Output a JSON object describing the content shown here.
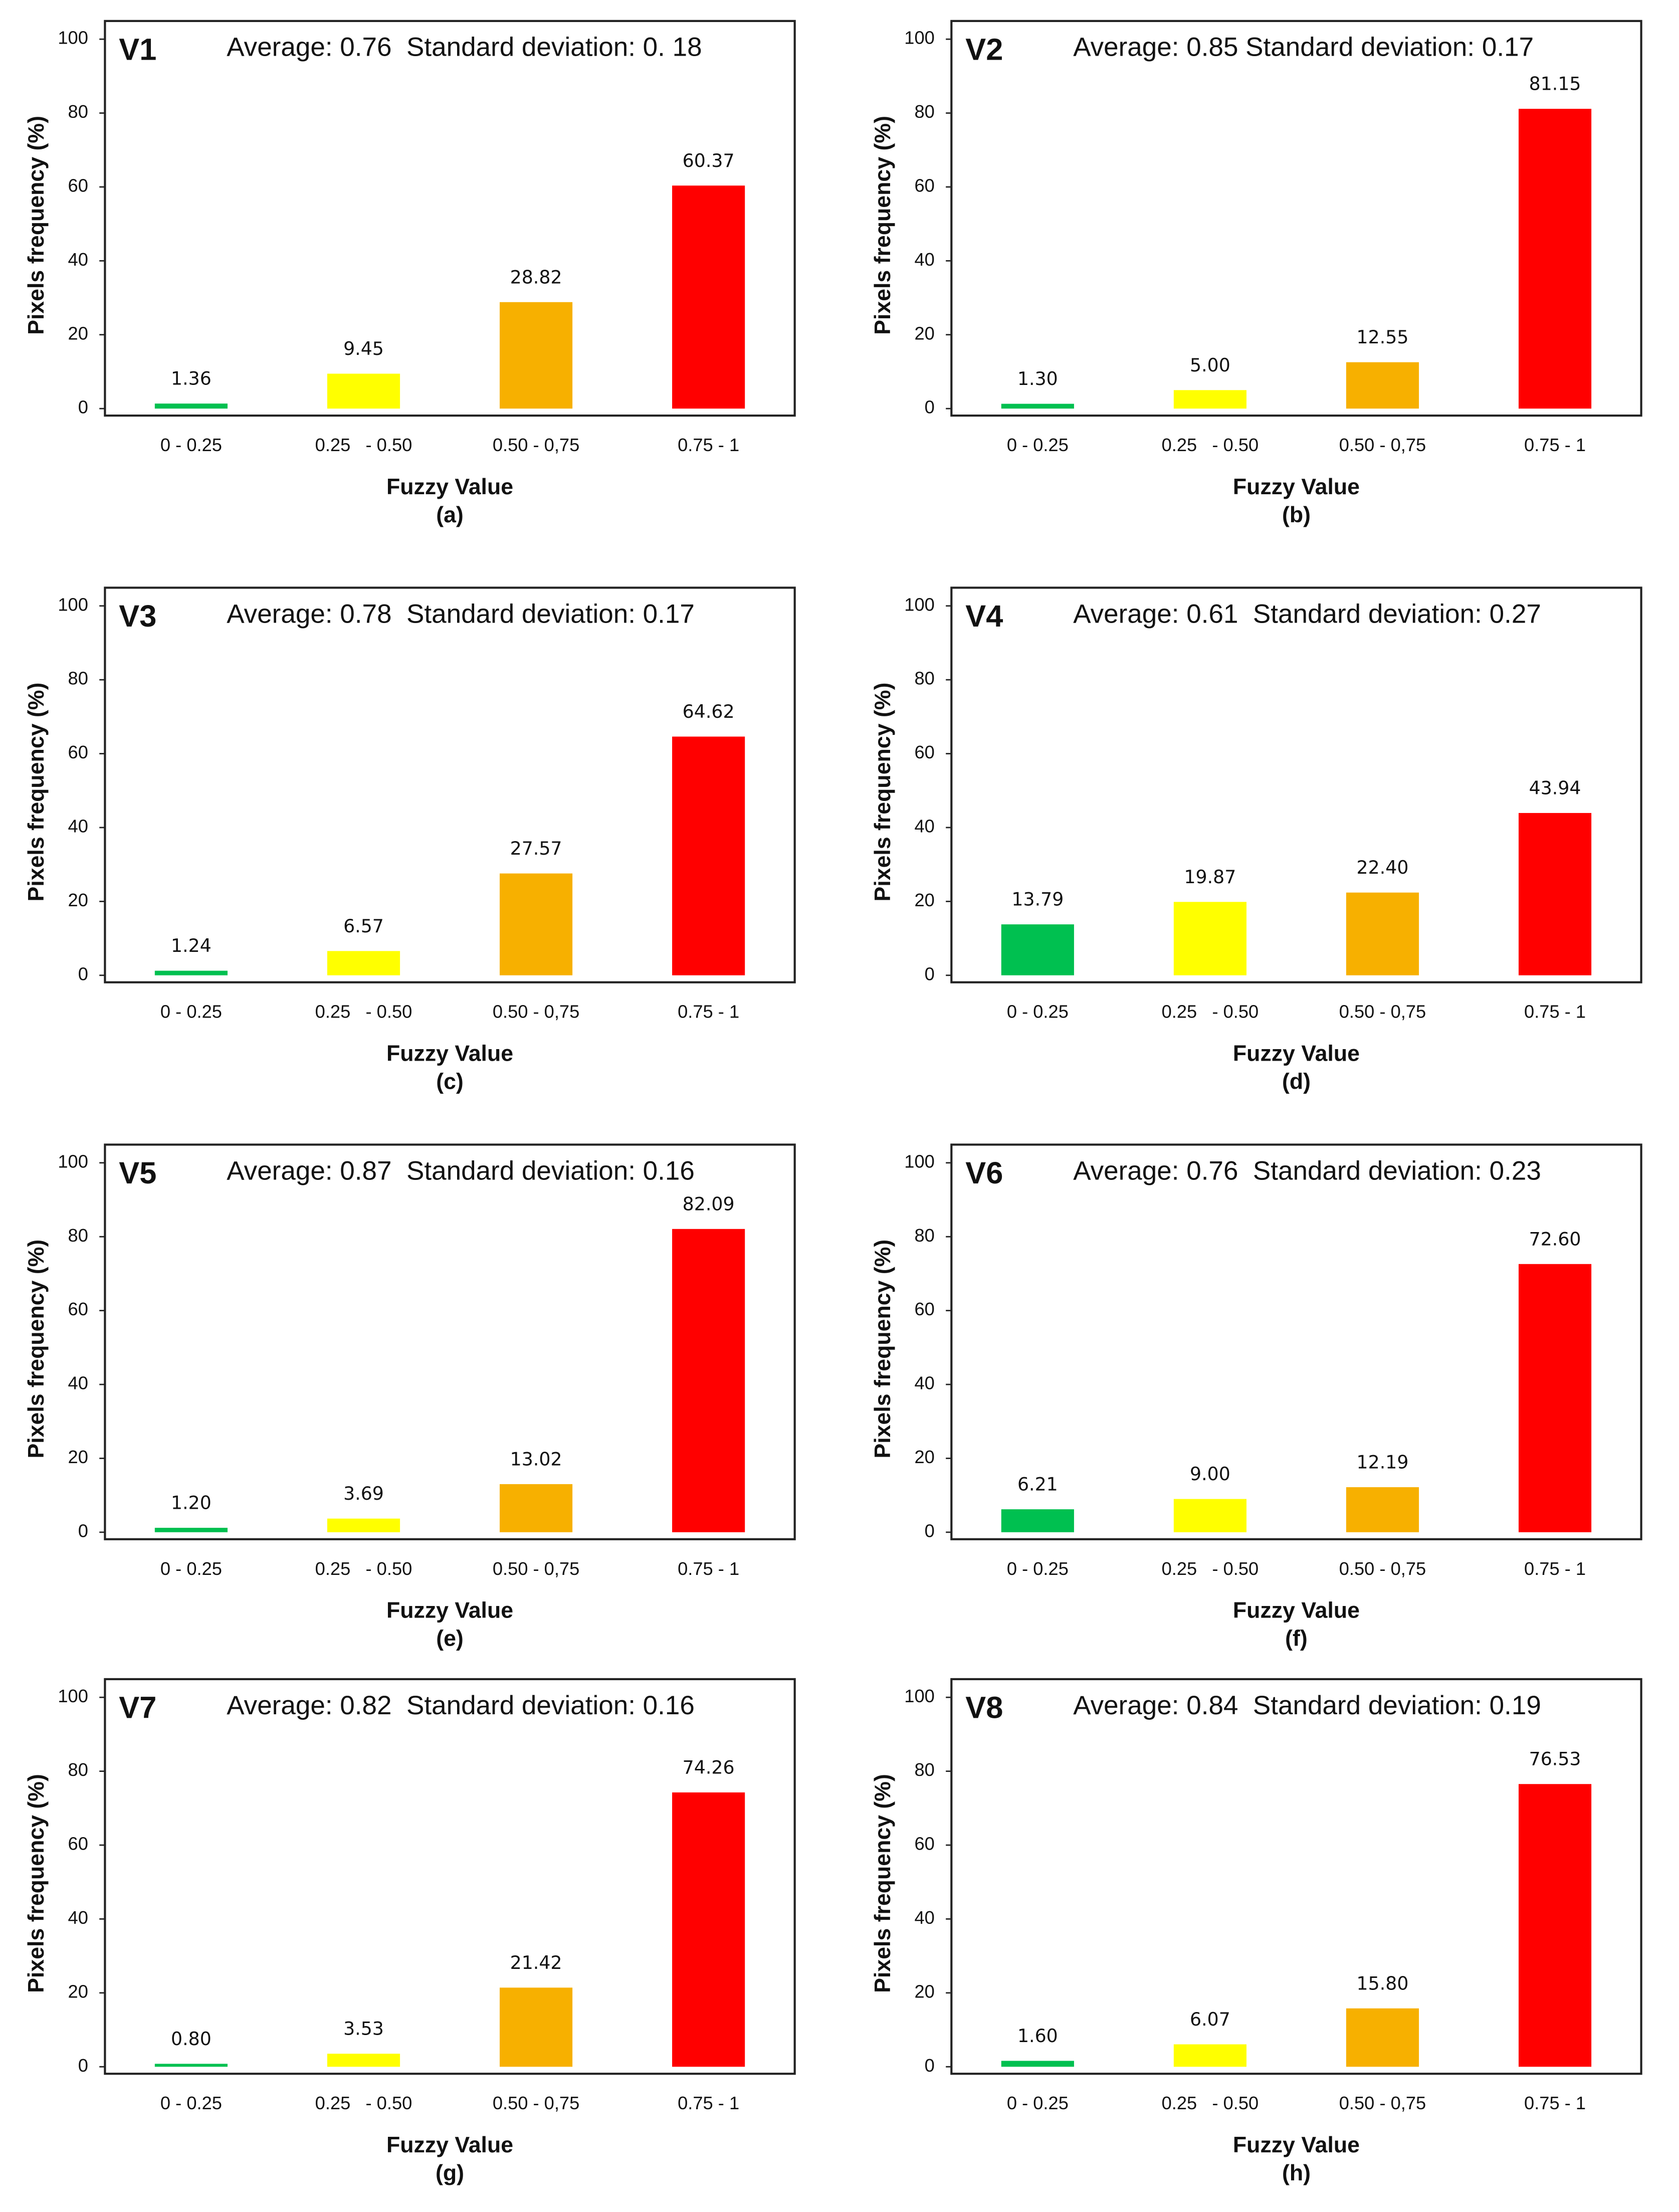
{
  "chart_data": [
    {
      "type": "bar",
      "label": "V1",
      "title": "Average: 0.76  Standard deviation: 0. 18",
      "xlabel": "Fuzzy Value",
      "ylabel": "Pixels frequency (%)",
      "caption": "(a)",
      "categories": [
        "0 - 0.25",
        "0.25   - 0.50",
        "0.50 - 0,75",
        "0.75 - 1"
      ],
      "values": [
        1.36,
        9.45,
        28.82,
        60.37
      ],
      "value_labels": [
        "1.36",
        "9.45",
        "28.82",
        "60.37"
      ],
      "colors": [
        "#00c050",
        "#ffff00",
        "#f7b000",
        "#ff0000"
      ],
      "ylim": [
        0,
        100
      ],
      "yticks": [
        0,
        20,
        40,
        60,
        80,
        100
      ]
    },
    {
      "type": "bar",
      "label": "V2",
      "title": "Average: 0.85 Standard deviation: 0.17",
      "xlabel": "Fuzzy Value",
      "ylabel": "Pixels frequency (%)",
      "caption": "(b)",
      "categories": [
        "0 - 0.25",
        "0.25   - 0.50",
        "0.50 - 0,75",
        "0.75 - 1"
      ],
      "values": [
        1.3,
        5.0,
        12.55,
        81.15
      ],
      "value_labels": [
        "1.30",
        "5.00",
        "12.55",
        "81.15"
      ],
      "colors": [
        "#00c050",
        "#ffff00",
        "#f7b000",
        "#ff0000"
      ],
      "ylim": [
        0,
        100
      ],
      "yticks": [
        0,
        20,
        40,
        60,
        80,
        100
      ]
    },
    {
      "type": "bar",
      "label": "V3",
      "title": "Average: 0.78  Standard deviation: 0.17",
      "xlabel": "Fuzzy Value",
      "ylabel": "Pixels frequency (%)",
      "caption": "(c)",
      "categories": [
        "0 - 0.25",
        "0.25   - 0.50",
        "0.50 - 0,75",
        "0.75 - 1"
      ],
      "values": [
        1.24,
        6.57,
        27.57,
        64.62
      ],
      "value_labels": [
        "1.24",
        "6.57",
        "27.57",
        "64.62"
      ],
      "colors": [
        "#00c050",
        "#ffff00",
        "#f7b000",
        "#ff0000"
      ],
      "ylim": [
        0,
        100
      ],
      "yticks": [
        0,
        20,
        40,
        60,
        80,
        100
      ]
    },
    {
      "type": "bar",
      "label": "V4",
      "title": "Average: 0.61  Standard deviation: 0.27",
      "xlabel": "Fuzzy Value",
      "ylabel": "Pixels frequency (%)",
      "caption": "(d)",
      "categories": [
        "0 - 0.25",
        "0.25   - 0.50",
        "0.50 - 0,75",
        "0.75 - 1"
      ],
      "values": [
        13.79,
        19.87,
        22.4,
        43.94
      ],
      "value_labels": [
        "13.79",
        "19.87",
        "22.40",
        "43.94"
      ],
      "colors": [
        "#00c050",
        "#ffff00",
        "#f7b000",
        "#ff0000"
      ],
      "ylim": [
        0,
        100
      ],
      "yticks": [
        0,
        20,
        40,
        60,
        80,
        100
      ]
    },
    {
      "type": "bar",
      "label": "V5",
      "title": "Average: 0.87  Standard deviation: 0.16",
      "xlabel": "Fuzzy Value",
      "ylabel": "Pixels frequency (%)",
      "caption": "(e)",
      "categories": [
        "0 - 0.25",
        "0.25   - 0.50",
        "0.50 - 0,75",
        "0.75 - 1"
      ],
      "values": [
        1.2,
        3.69,
        13.02,
        82.09
      ],
      "value_labels": [
        "1.20",
        "3.69",
        "13.02",
        "82.09"
      ],
      "colors": [
        "#00c050",
        "#ffff00",
        "#f7b000",
        "#ff0000"
      ],
      "ylim": [
        0,
        100
      ],
      "yticks": [
        0,
        20,
        40,
        60,
        80,
        100
      ]
    },
    {
      "type": "bar",
      "label": "V6",
      "title": "Average: 0.76  Standard deviation: 0.23",
      "xlabel": "Fuzzy Value",
      "ylabel": "Pixels frequency (%)",
      "caption": "(f)",
      "categories": [
        "0 - 0.25",
        "0.25   - 0.50",
        "0.50 - 0,75",
        "0.75 - 1"
      ],
      "values": [
        6.21,
        9.0,
        12.19,
        72.6
      ],
      "value_labels": [
        "6.21",
        "9.00",
        "12.19",
        "72.60"
      ],
      "colors": [
        "#00c050",
        "#ffff00",
        "#f7b000",
        "#ff0000"
      ],
      "ylim": [
        0,
        100
      ],
      "yticks": [
        0,
        20,
        40,
        60,
        80,
        100
      ]
    },
    {
      "type": "bar",
      "label": "V7",
      "title": "Average: 0.82  Standard deviation: 0.16",
      "xlabel": "Fuzzy Value",
      "ylabel": "Pixels frequency (%)",
      "caption": "(g)",
      "categories": [
        "0 - 0.25",
        "0.25   - 0.50",
        "0.50 - 0,75",
        "0.75 - 1"
      ],
      "values": [
        0.8,
        3.53,
        21.42,
        74.26
      ],
      "value_labels": [
        "0.80",
        "3.53",
        "21.42",
        "74.26"
      ],
      "colors": [
        "#00c050",
        "#ffff00",
        "#f7b000",
        "#ff0000"
      ],
      "ylim": [
        0,
        100
      ],
      "yticks": [
        0,
        20,
        40,
        60,
        80,
        100
      ]
    },
    {
      "type": "bar",
      "label": "V8",
      "title": "Average: 0.84  Standard deviation: 0.19",
      "xlabel": "Fuzzy Value",
      "ylabel": "Pixels frequency (%)",
      "caption": "(h)",
      "categories": [
        "0 - 0.25",
        "0.25   - 0.50",
        "0.50 - 0,75",
        "0.75 - 1"
      ],
      "values": [
        1.6,
        6.07,
        15.8,
        76.53
      ],
      "value_labels": [
        "1.60",
        "6.07",
        "15.80",
        "76.53"
      ],
      "colors": [
        "#00c050",
        "#ffff00",
        "#f7b000",
        "#ff0000"
      ],
      "ylim": [
        0,
        100
      ],
      "yticks": [
        0,
        20,
        40,
        60,
        80,
        100
      ]
    }
  ]
}
